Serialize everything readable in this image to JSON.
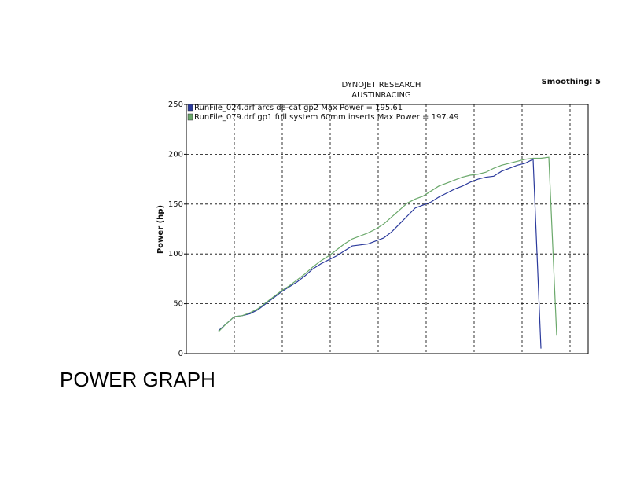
{
  "chart_data": {
    "type": "line",
    "title": "DYNOJET RESEARCH",
    "subtitle": "AUSTINRACING",
    "annotation": "Smoothing: 5",
    "y_label": "Power (hp)",
    "caption": "POWER GRAPH",
    "categories": [
      null,
      null,
      null,
      null,
      null,
      null,
      null,
      null,
      null,
      null,
      null,
      null,
      null,
      null,
      null,
      null,
      null,
      null,
      null,
      null,
      null,
      null,
      null,
      null,
      null,
      null,
      null,
      null,
      null,
      null,
      null,
      null,
      null,
      null,
      null,
      null,
      null,
      null,
      null,
      null,
      null,
      null,
      null,
      null,
      null,
      null,
      null,
      null,
      null,
      null,
      null,
      null
    ],
    "series": [
      {
        "name": "RunFile_024.drf arcs de-cat gp2 Max Power = 195.61",
        "color": "#2b3a9c",
        "values": [
          null,
          null,
          null,
          null,
          23,
          30,
          37,
          38,
          40,
          44,
          50,
          56,
          62,
          67,
          72,
          78,
          85,
          90,
          94,
          98,
          103,
          108,
          109,
          110,
          113,
          116,
          122,
          130,
          138,
          146,
          149,
          152,
          157,
          161,
          165,
          168,
          172,
          175,
          177,
          178,
          183,
          186,
          189,
          191,
          195,
          5,
          null,
          null,
          null,
          null,
          null,
          null
        ]
      },
      {
        "name": "RunFile_079.drf gp1 full system 60mm inserts Max Power = 197.49",
        "color": "#6aa86a",
        "values": [
          null,
          null,
          null,
          null,
          22,
          30,
          37,
          38,
          41,
          45,
          51,
          57,
          63,
          68,
          74,
          80,
          87,
          93,
          98,
          104,
          110,
          115,
          118,
          121,
          125,
          130,
          137,
          144,
          151,
          155,
          158,
          163,
          168,
          171,
          174,
          177,
          179,
          180,
          182,
          186,
          189,
          191,
          193,
          195,
          196,
          196,
          197,
          18,
          null,
          null,
          null,
          null
        ]
      }
    ],
    "ylim": [
      0,
      250
    ],
    "yticks": [
      0,
      50,
      100,
      150,
      200,
      250
    ],
    "grid": true
  }
}
